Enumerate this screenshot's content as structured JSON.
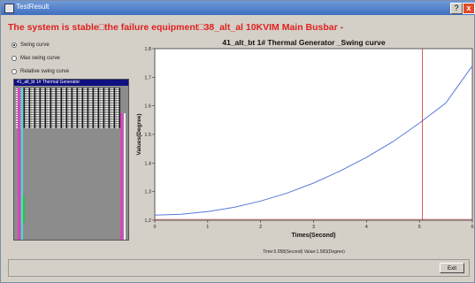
{
  "window": {
    "title": "TestResult",
    "help": "?",
    "close": "x"
  },
  "status_message": "The system is stable□the failure equipment□38_alt_al 10KVIM Main Busbar -",
  "options": [
    {
      "label": "Swing curve",
      "selected": true
    },
    {
      "label": "Max swing curve",
      "selected": false
    },
    {
      "label": "Relative swing curve",
      "selected": false
    }
  ],
  "tree": {
    "header": "41_alt_bt 1# Thermal Generator"
  },
  "readout": "Time:5.058(Second)   Value:1.583(Degree)",
  "exit_label": "Exit",
  "colors": {
    "curve": "#5a78d8",
    "cursor": "#d03030",
    "status": "#e02020"
  },
  "chart_data": {
    "type": "line",
    "title": "41_alt_bt 1# Thermal Generator _Swing curve",
    "xlabel": "Times(Second)",
    "ylabel": "Values(Degree)",
    "xlim": [
      0,
      6
    ],
    "ylim": [
      1.2,
      1.8
    ],
    "xticks": [
      "0",
      "1",
      "2",
      "3",
      "4",
      "5",
      "6"
    ],
    "yticks": [
      "1.2",
      "1.3",
      "1.4",
      "1.5",
      "1.6",
      "1.7",
      "1.8"
    ],
    "grid": false,
    "series": [
      {
        "x": [
          0,
          0.5,
          1,
          1.5,
          2,
          2.5,
          3,
          3.5,
          4,
          4.5,
          5,
          5.5,
          6
        ],
        "values": [
          1.218,
          1.221,
          1.23,
          1.245,
          1.267,
          1.295,
          1.33,
          1.372,
          1.42,
          1.475,
          1.54,
          1.61,
          1.74
        ]
      }
    ],
    "cursor_x": 5.058
  }
}
